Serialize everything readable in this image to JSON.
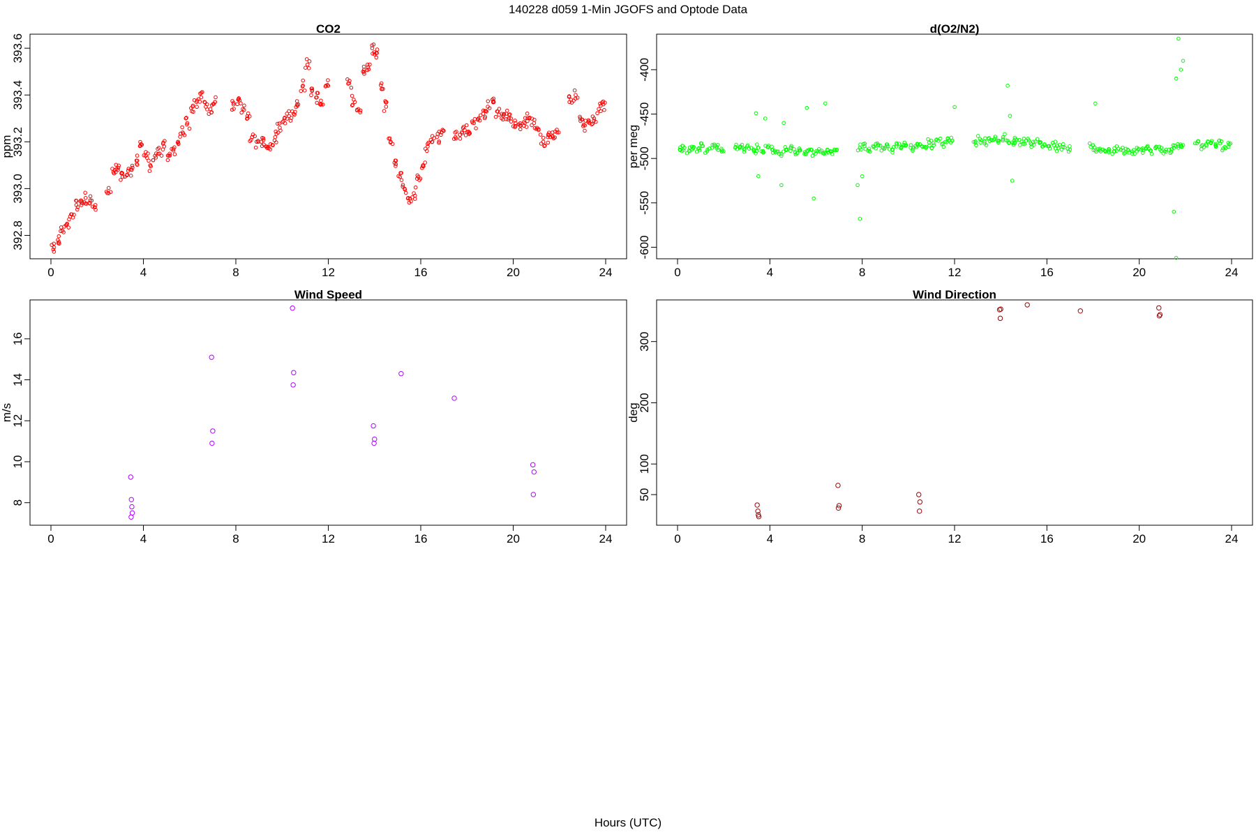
{
  "title": "140228   d059   1-Min  JGOFS and Optode Data",
  "xlabel": "Hours (UTC)",
  "colors": {
    "co2": "#ff0000",
    "o2n2": "#00ff00",
    "wind_speed": "#b000ff",
    "wind_dir": "#a00000"
  },
  "chart_data": [
    {
      "type": "scatter",
      "title": "CO2",
      "ylabel": "ppm",
      "xlim": [
        0,
        24
      ],
      "ylim": [
        392.7,
        393.66
      ],
      "xticks": [
        0,
        4,
        8,
        12,
        16,
        20,
        24
      ],
      "yticks": [
        392.8,
        393.0,
        393.2,
        393.4,
        393.6
      ],
      "ytick_labels": [
        "392.8",
        "393.0",
        "393.2",
        "393.4",
        "393.6"
      ],
      "series": [
        {
          "x": [
            0.1,
            0.3,
            0.5,
            0.7,
            0.9,
            1.1,
            1.3,
            1.5,
            1.7,
            1.9,
            2.5,
            2.7,
            2.9,
            3.1,
            3.3,
            3.5,
            3.7,
            3.9,
            4.1,
            4.3,
            4.5,
            4.7,
            4.9,
            5.1,
            5.3,
            5.5,
            5.7,
            5.9,
            6.1,
            6.3,
            6.5,
            6.7,
            6.9,
            7.1,
            7.9,
            8.1,
            8.3,
            8.5,
            8.7,
            8.9,
            9.1,
            9.3,
            9.5,
            9.7,
            9.9,
            10.1,
            10.3,
            10.5,
            10.7,
            10.9,
            11.1,
            11.3,
            11.5,
            11.7,
            11.9,
            12.9,
            13.1,
            13.3,
            13.5,
            13.7,
            13.9,
            14.1,
            14.3,
            14.5,
            14.7,
            14.9,
            15.1,
            15.3,
            15.5,
            15.7,
            15.9,
            16.1,
            16.3,
            16.5,
            16.7,
            16.9,
            17.5,
            17.7,
            17.9,
            18.1,
            18.3,
            18.5,
            18.7,
            18.9,
            19.1,
            19.3,
            19.5,
            19.7,
            19.9,
            20.1,
            20.3,
            20.5,
            20.7,
            20.9,
            21.1,
            21.3,
            21.5,
            21.7,
            21.9,
            22.5,
            22.7,
            22.9,
            23.1,
            23.3,
            23.5,
            23.7,
            23.9
          ],
          "y": [
            392.74,
            392.78,
            392.82,
            392.85,
            392.89,
            392.93,
            392.95,
            392.96,
            392.95,
            392.92,
            392.98,
            393.07,
            393.08,
            393.05,
            393.06,
            393.08,
            393.12,
            393.19,
            393.14,
            393.1,
            393.14,
            393.15,
            393.18,
            393.14,
            393.17,
            393.2,
            393.24,
            393.28,
            393.33,
            393.37,
            393.39,
            393.35,
            393.34,
            393.37,
            393.36,
            393.38,
            393.34,
            393.3,
            393.22,
            393.2,
            393.2,
            393.18,
            393.19,
            393.22,
            393.26,
            393.3,
            393.31,
            393.32,
            393.36,
            393.44,
            393.53,
            393.42,
            393.39,
            393.36,
            393.44,
            393.45,
            393.38,
            393.34,
            393.5,
            393.53,
            393.6,
            393.58,
            393.45,
            393.35,
            393.2,
            393.12,
            393.05,
            393.0,
            392.94,
            392.98,
            393.05,
            393.1,
            393.18,
            393.2,
            393.22,
            393.24,
            393.22,
            393.23,
            393.25,
            393.24,
            393.28,
            393.3,
            393.32,
            393.35,
            393.38,
            393.33,
            393.3,
            393.32,
            393.3,
            393.28,
            393.27,
            393.28,
            393.3,
            393.28,
            393.25,
            393.2,
            393.22,
            393.24,
            393.24,
            393.38,
            393.4,
            393.3,
            393.27,
            393.28,
            393.3,
            393.34,
            393.36
          ]
        }
      ]
    },
    {
      "type": "scatter",
      "title": "d(O2/N2)",
      "ylabel": "per meg",
      "xlim": [
        0,
        24
      ],
      "ylim": [
        -613,
        -360
      ],
      "xticks": [
        0,
        4,
        8,
        12,
        16,
        20,
        24
      ],
      "yticks": [
        -600,
        -550,
        -500,
        -450,
        -400
      ],
      "ytick_labels": [
        "-600",
        "-550",
        "-500",
        "-450",
        "-400"
      ],
      "series": [
        {
          "x": [
            0.1,
            0.3,
            0.5,
            0.7,
            0.9,
            1.1,
            1.3,
            1.5,
            1.7,
            1.9,
            2.5,
            2.7,
            2.9,
            3.1,
            3.3,
            3.5,
            3.7,
            3.9,
            4.1,
            4.3,
            4.5,
            4.7,
            4.9,
            5.1,
            5.3,
            5.5,
            5.7,
            5.9,
            6.1,
            6.3,
            6.5,
            6.7,
            6.9,
            7.9,
            8.1,
            8.3,
            8.5,
            8.7,
            8.9,
            9.1,
            9.3,
            9.5,
            9.7,
            9.9,
            10.1,
            10.3,
            10.5,
            10.7,
            10.9,
            11.1,
            11.3,
            11.5,
            11.7,
            11.9,
            12.9,
            13.1,
            13.3,
            13.5,
            13.7,
            13.9,
            14.1,
            14.3,
            14.5,
            14.7,
            14.9,
            15.1,
            15.3,
            15.5,
            15.7,
            15.9,
            16.1,
            16.3,
            16.5,
            16.7,
            16.9,
            17.9,
            18.1,
            18.3,
            18.5,
            18.7,
            18.9,
            19.1,
            19.3,
            19.5,
            19.7,
            19.9,
            20.1,
            20.3,
            20.5,
            20.7,
            20.9,
            21.1,
            21.3,
            21.5,
            21.7,
            21.9,
            22.5,
            22.7,
            22.9,
            23.1,
            23.3,
            23.5,
            23.7,
            23.9,
            3.4,
            3.8,
            4.6,
            5.6,
            6.4,
            7.8,
            7.9,
            8.0,
            12.0,
            14.3,
            14.4,
            14.5,
            18.1,
            21.5,
            21.6,
            21.7,
            21.9,
            21.6,
            21.8,
            5.9,
            4.5,
            3.5
          ],
          "y": [
            -490,
            -488,
            -491,
            -487,
            -489,
            -486,
            -490,
            -488,
            -487,
            -489,
            -488,
            -487,
            -490,
            -489,
            -491,
            -488,
            -493,
            -487,
            -490,
            -492,
            -495,
            -490,
            -488,
            -493,
            -491,
            -495,
            -490,
            -493,
            -492,
            -494,
            -491,
            -495,
            -490,
            -488,
            -486,
            -489,
            -487,
            -485,
            -488,
            -486,
            -490,
            -484,
            -487,
            -485,
            -488,
            -486,
            -484,
            -487,
            -482,
            -485,
            -480,
            -483,
            -478,
            -480,
            -482,
            -478,
            -481,
            -477,
            -479,
            -482,
            -476,
            -480,
            -482,
            -479,
            -481,
            -480,
            -483,
            -481,
            -482,
            -484,
            -486,
            -485,
            -488,
            -487,
            -489,
            -487,
            -491,
            -489,
            -491,
            -490,
            -492,
            -489,
            -491,
            -490,
            -492,
            -488,
            -490,
            -489,
            -491,
            -488,
            -490,
            -492,
            -490,
            -488,
            -486,
            -485,
            -483,
            -486,
            -484,
            -482,
            -485,
            -483,
            -487,
            -484,
            -449,
            -455,
            -460,
            -443,
            -438,
            -530,
            -568,
            -520,
            -442,
            -418,
            -452,
            -525,
            -438,
            -560,
            -612,
            -365,
            -390,
            -410,
            -400,
            -545,
            -530,
            -520
          ]
        }
      ]
    },
    {
      "type": "scatter",
      "title": "Wind Speed",
      "ylabel": "m/s",
      "xlim": [
        0,
        24
      ],
      "ylim": [
        6.9,
        17.9
      ],
      "xticks": [
        0,
        4,
        8,
        12,
        16,
        20,
        24
      ],
      "yticks": [
        8,
        10,
        12,
        14,
        16
      ],
      "ytick_labels": [
        "8",
        "10",
        "12",
        "14",
        "16"
      ],
      "series": [
        {
          "x": [
            3.45,
            3.48,
            3.5,
            3.52,
            3.47,
            6.95,
            7.0,
            6.97,
            10.45,
            10.5,
            10.48,
            13.95,
            14.0,
            13.98,
            15.15,
            17.45,
            20.85,
            20.9,
            20.87
          ],
          "y": [
            9.25,
            8.15,
            7.8,
            7.5,
            7.3,
            15.1,
            11.5,
            10.9,
            17.5,
            14.35,
            13.75,
            11.75,
            11.1,
            10.9,
            14.3,
            13.1,
            9.85,
            9.5,
            8.4
          ]
        }
      ]
    },
    {
      "type": "scatter",
      "title": "Wind Direction",
      "ylabel": "deg",
      "xlim": [
        0,
        24
      ],
      "ylim": [
        0,
        368
      ],
      "xticks": [
        0,
        4,
        8,
        12,
        16,
        20,
        24
      ],
      "yticks": [
        50,
        100,
        200,
        300
      ],
      "ytick_labels": [
        "50",
        "100",
        "200",
        "300"
      ],
      "series": [
        {
          "x": [
            3.45,
            3.48,
            3.5,
            3.52,
            6.95,
            7.0,
            6.97,
            10.45,
            10.5,
            10.48,
            13.95,
            14.0,
            13.98,
            15.15,
            17.45,
            20.85,
            20.9,
            20.87
          ],
          "y": [
            33,
            23,
            17,
            14,
            65,
            32,
            28,
            50,
            38,
            23,
            352,
            353,
            338,
            360,
            350,
            355,
            344,
            342
          ]
        }
      ]
    }
  ]
}
